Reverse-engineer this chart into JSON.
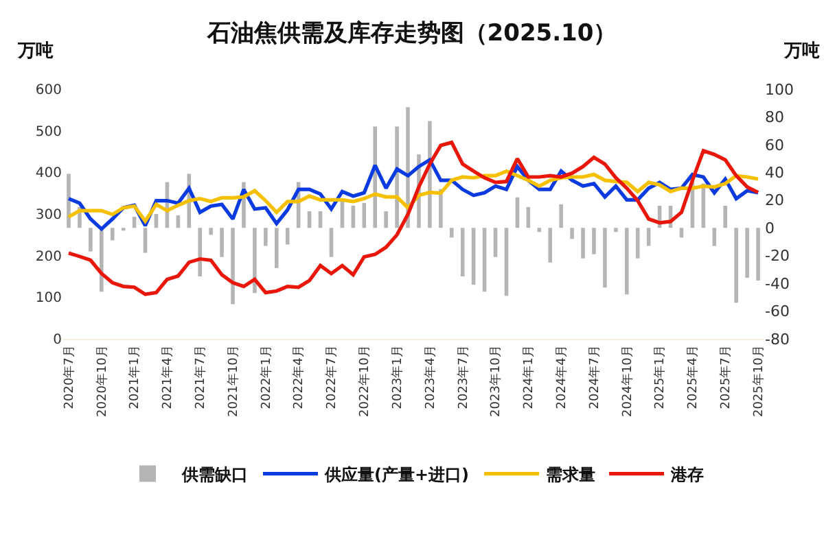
{
  "chart_data": {
    "type": "line",
    "title": "石油焦供需及库存走势图（2025.10）",
    "ylabel": "万吨",
    "y2label": "万吨",
    "categories": [
      "2020年7月",
      null,
      null,
      "2020年10月",
      null,
      null,
      "2021年1月",
      null,
      null,
      "2021年4月",
      null,
      null,
      "2021年7月",
      null,
      null,
      "2021年10月",
      null,
      null,
      "2022年1月",
      null,
      null,
      "2022年4月",
      null,
      null,
      "2022年7月",
      null,
      null,
      "2022年10月",
      null,
      null,
      "2023年1月",
      null,
      null,
      "2023年4月",
      null,
      null,
      "2023年7月",
      null,
      null,
      "2023年10月",
      null,
      null,
      "2024年1月",
      null,
      null,
      "2024年4月",
      null,
      null,
      "2024年7月",
      null,
      null,
      "2024年10月",
      null,
      null,
      "2025年1月",
      null,
      null,
      "2025年4月",
      null,
      null,
      "2025年7月",
      null,
      null,
      "2025年10月"
    ],
    "series": [
      {
        "name": "供需缺口",
        "type": "bar",
        "axis": "y2",
        "color": "#b5b5b5",
        "values": [
          39,
          15,
          -17,
          -46,
          -9,
          -2,
          8,
          -18,
          10,
          33,
          9,
          39,
          -35,
          -5,
          -21,
          -55,
          33,
          -47,
          -13,
          -29,
          -12,
          33,
          12,
          12,
          -21,
          19,
          16,
          18,
          73,
          12,
          73,
          87,
          53,
          77,
          28,
          -7,
          -35,
          -41,
          -46,
          -21,
          -49,
          22,
          15,
          -3,
          -25,
          17,
          -8,
          -22,
          -19,
          -43,
          -3,
          -48,
          -22,
          -13,
          16,
          16,
          -7,
          35,
          32,
          -13,
          16,
          -54,
          -36,
          -38
        ]
      },
      {
        "name": "供应量(产量+进口)",
        "color": "#0a3be0",
        "values": [
          337,
          326,
          288,
          264,
          288,
          315,
          321,
          272,
          332,
          332,
          326,
          362,
          304,
          319,
          323,
          288,
          359,
          312,
          315,
          277,
          310,
          359,
          359,
          348,
          312,
          354,
          343,
          351,
          417,
          362,
          408,
          392,
          414,
          430,
          381,
          381,
          359,
          345,
          351,
          367,
          359,
          414,
          381,
          359,
          359,
          403,
          381,
          367,
          373,
          341,
          367,
          334,
          334,
          362,
          376,
          359,
          362,
          395,
          389,
          351,
          384,
          337,
          356,
          351
        ]
      },
      {
        "name": "需求量",
        "color": "#f5c000",
        "values": [
          293,
          308,
          308,
          308,
          299,
          315,
          319,
          283,
          323,
          308,
          321,
          332,
          337,
          330,
          339,
          339,
          341,
          356,
          332,
          304,
          330,
          330,
          343,
          334,
          334,
          334,
          330,
          337,
          348,
          341,
          341,
          315,
          345,
          352,
          350,
          381,
          389,
          387,
          392,
          392,
          403,
          392,
          381,
          367,
          381,
          387,
          389,
          389,
          395,
          381,
          378,
          376,
          354,
          376,
          370,
          354,
          362,
          362,
          367,
          365,
          373,
          392,
          389,
          384
        ]
      },
      {
        "name": "港存",
        "color": "#e8170a",
        "values": [
          206,
          198,
          189,
          157,
          135,
          126,
          124,
          107,
          111,
          143,
          151,
          184,
          192,
          189,
          154,
          135,
          126,
          143,
          111,
          115,
          126,
          124,
          140,
          176,
          157,
          176,
          154,
          197,
          203,
          220,
          250,
          299,
          365,
          420,
          465,
          472,
          420,
          403,
          387,
          376,
          378,
          433,
          389,
          389,
          392,
          389,
          398,
          414,
          436,
          420,
          387,
          362,
          332,
          288,
          279,
          282,
          304,
          381,
          452,
          443,
          430,
          392,
          365,
          352
        ]
      }
    ],
    "ylim": [
      0,
      600
    ],
    "yticks": [
      0,
      100,
      200,
      300,
      400,
      500,
      600
    ],
    "y2lim": [
      -80,
      100
    ],
    "y2ticks": [
      -80,
      -60,
      -40,
      -20,
      0,
      20,
      40,
      60,
      80,
      100
    ],
    "legend": "bottom"
  }
}
